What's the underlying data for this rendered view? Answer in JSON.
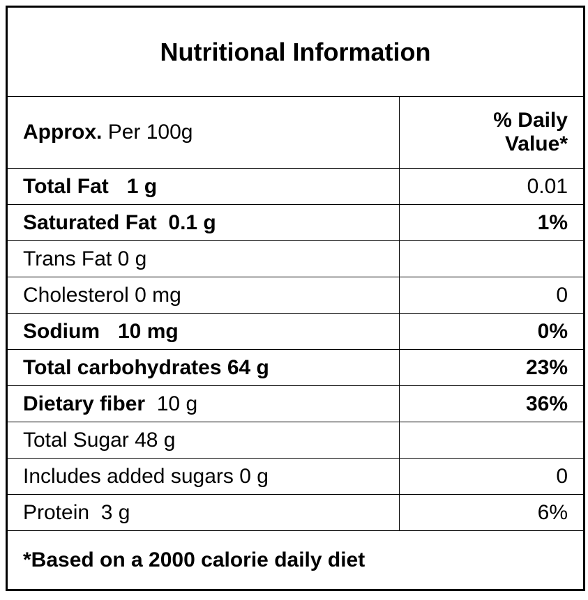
{
  "title": "Nutritional Information",
  "header": {
    "label_bold": "Approx.",
    "label": "Per 100g",
    "value": "% Daily Value*"
  },
  "rows": [
    {
      "name": "Total Fat",
      "amount": "1 g",
      "value": "0.01"
    },
    {
      "name": "Saturated Fat",
      "amount": "0.1 g",
      "value": "1%"
    },
    {
      "name": "Trans Fat 0 g"
    },
    {
      "name": "Cholesterol 0 mg",
      "value": "0"
    },
    {
      "name": "Sodium",
      "amount": "10 mg",
      "value": "0%"
    },
    {
      "name": "Total carbohydrates 64 g",
      "value": "23%"
    },
    {
      "name": "Dietary fiber",
      "amount": "10 g",
      "value": "36%"
    },
    {
      "name": "Total Sugar 48 g"
    },
    {
      "name": "Includes added sugars 0 g",
      "value": "0"
    },
    {
      "name": "Protein",
      "amount": "3 g",
      "value": "6%"
    }
  ],
  "footnote": "*Based on a 2000 calorie daily diet"
}
